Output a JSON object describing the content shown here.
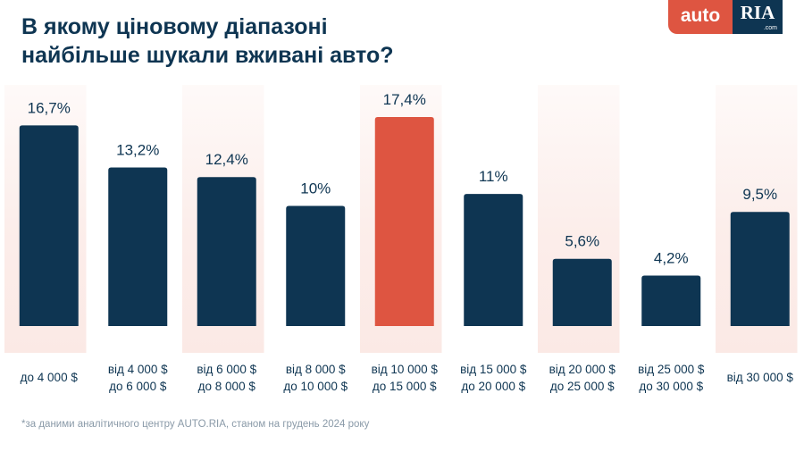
{
  "title_lines": [
    "В якому ціновому діапазоні",
    "найбільше шукали вживані авто?"
  ],
  "logo": {
    "auto": "auto",
    "ria": "RIA",
    "com": ".com"
  },
  "footnote": "*за даними аналітичного центру AUTO.RIA, станом на грудень 2024 року",
  "colors": {
    "bar": "#0e3552",
    "highlight": "#de5541",
    "text": "#0e3552",
    "column_band": "#fbe9e5"
  },
  "chart_data": {
    "type": "bar",
    "title": "В якому ціновому діапазоні найбільше шукали вживані авто?",
    "categories": [
      [
        "до 4 000 $"
      ],
      [
        "від 4 000 $",
        "до 6 000 $"
      ],
      [
        "від 6 000 $",
        "до 8 000 $"
      ],
      [
        "від 8 000 $",
        "до 10 000 $"
      ],
      [
        "від 10 000 $",
        "до 15 000 $"
      ],
      [
        "від 15 000 $",
        "до 20 000 $"
      ],
      [
        "від 20 000 $",
        "до 25 000 $"
      ],
      [
        "від 25 000 $",
        "до 30 000 $"
      ],
      [
        "від 30 000 $"
      ]
    ],
    "values": [
      16.7,
      13.2,
      12.4,
      10,
      17.4,
      11,
      5.6,
      4.2,
      9.5
    ],
    "value_labels": [
      "16,7%",
      "13,2%",
      "12,4%",
      "10%",
      "17,4%",
      "11%",
      "5,6%",
      "4,2%",
      "9,5%"
    ],
    "unit": "%",
    "highlight_index": 4,
    "xlabel": "",
    "ylabel": "",
    "ylim": [
      0,
      17.4
    ],
    "grid": false,
    "legend": "none"
  }
}
